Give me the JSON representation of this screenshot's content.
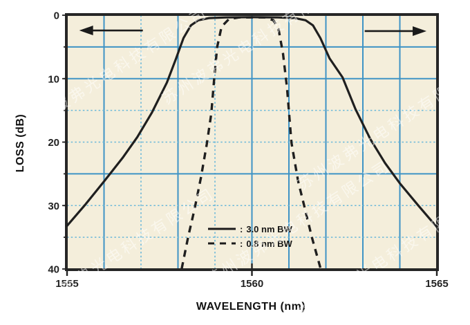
{
  "watermark": {
    "text": "苏州波弗光电科技有限公司"
  },
  "chart_data": {
    "type": "line",
    "title": "",
    "xlabel": "WAVELENGTH (nm)",
    "ylabel": "LOSS (dB)",
    "x_range": [
      1555,
      1565
    ],
    "y_range": [
      0,
      40
    ],
    "y_direction": "inverted",
    "grid": "on",
    "colors": {
      "plot_background": "#f4eedb",
      "grid_solid": "#3e93c5",
      "grid_dashed": "#6ab8da",
      "frame": "#262626",
      "curve": "#1f1f1f"
    },
    "x_ticks": [
      {
        "value": 1555,
        "label": "1555",
        "stub_above": false
      },
      {
        "value": 1560,
        "label": "1560",
        "stub_above": true
      },
      {
        "value": 1565,
        "label": "1565",
        "stub_above": false
      }
    ],
    "y_ticks": [
      {
        "value": 0,
        "label": "0"
      },
      {
        "value": 10,
        "label": "10"
      },
      {
        "value": 20,
        "label": "20"
      },
      {
        "value": 30,
        "label": "30"
      },
      {
        "value": 40,
        "label": "40"
      }
    ],
    "x_gridlines": [
      {
        "x": 1556,
        "style": "solid"
      },
      {
        "x": 1557,
        "style": "dashed"
      },
      {
        "x": 1558,
        "style": "solid"
      },
      {
        "x": 1559,
        "style": "dashed"
      },
      {
        "x": 1560,
        "style": "solid"
      },
      {
        "x": 1561,
        "style": "solid"
      },
      {
        "x": 1562,
        "style": "solid"
      },
      {
        "x": 1563,
        "style": "solid"
      },
      {
        "x": 1564,
        "style": "solid"
      }
    ],
    "y_gridlines": [
      {
        "y": 5,
        "style": "solid"
      },
      {
        "y": 10,
        "style": "solid"
      },
      {
        "y": 15,
        "style": "dashed"
      },
      {
        "y": 20,
        "style": "dashed"
      },
      {
        "y": 25,
        "style": "solid"
      },
      {
        "y": 30,
        "style": "dashed"
      },
      {
        "y": 35,
        "style": "dashed"
      }
    ],
    "legend": {
      "position": "lower-center",
      "separator": ":",
      "entries": [
        {
          "style": "solid",
          "label": "3.0 nm BW"
        },
        {
          "style": "dashed",
          "label": "0.8 nm BW"
        }
      ]
    },
    "series": [
      {
        "name": "3.0 nm BW",
        "line": "solid",
        "points": [
          [
            1555.0,
            33.2
          ],
          [
            1555.5,
            29.8
          ],
          [
            1556.0,
            26.2
          ],
          [
            1556.5,
            22.5
          ],
          [
            1556.9,
            19.2
          ],
          [
            1557.3,
            15.3
          ],
          [
            1557.7,
            10.6
          ],
          [
            1557.95,
            6.8
          ],
          [
            1558.15,
            3.6
          ],
          [
            1558.35,
            1.6
          ],
          [
            1558.55,
            0.8
          ],
          [
            1558.85,
            0.45
          ],
          [
            1559.3,
            0.35
          ],
          [
            1560.0,
            0.3
          ],
          [
            1560.7,
            0.35
          ],
          [
            1561.15,
            0.45
          ],
          [
            1561.45,
            0.8
          ],
          [
            1561.65,
            1.6
          ],
          [
            1561.85,
            3.6
          ],
          [
            1562.1,
            6.8
          ],
          [
            1562.45,
            9.8
          ],
          [
            1562.8,
            14.8
          ],
          [
            1563.2,
            19.5
          ],
          [
            1563.6,
            23.3
          ],
          [
            1564.0,
            26.5
          ],
          [
            1564.5,
            30.0
          ],
          [
            1565.0,
            33.4
          ]
        ]
      },
      {
        "name": "0.8 nm BW",
        "line": "dashed",
        "points": [
          [
            1558.1,
            40
          ],
          [
            1558.28,
            34.8
          ],
          [
            1558.45,
            30.5
          ],
          [
            1558.62,
            25.6
          ],
          [
            1558.78,
            20.3
          ],
          [
            1558.9,
            15.5
          ],
          [
            1558.98,
            10.0
          ],
          [
            1559.06,
            5.0
          ],
          [
            1559.18,
            1.8
          ],
          [
            1559.38,
            0.6
          ],
          [
            1559.65,
            0.35
          ],
          [
            1560.35,
            0.35
          ],
          [
            1560.58,
            0.8
          ],
          [
            1560.72,
            2.2
          ],
          [
            1560.84,
            6.0
          ],
          [
            1560.95,
            11.5
          ],
          [
            1561.07,
            20.1
          ],
          [
            1561.25,
            26.2
          ],
          [
            1561.42,
            30.2
          ],
          [
            1561.62,
            35.0
          ],
          [
            1561.86,
            40
          ]
        ]
      }
    ],
    "arrows": [
      {
        "direction": "left",
        "x_tail": 1557.05,
        "x_head": 1555.33,
        "loss": 2.4
      },
      {
        "direction": "right",
        "x_tail": 1563.05,
        "x_head": 1564.72,
        "loss": 2.5
      }
    ]
  }
}
